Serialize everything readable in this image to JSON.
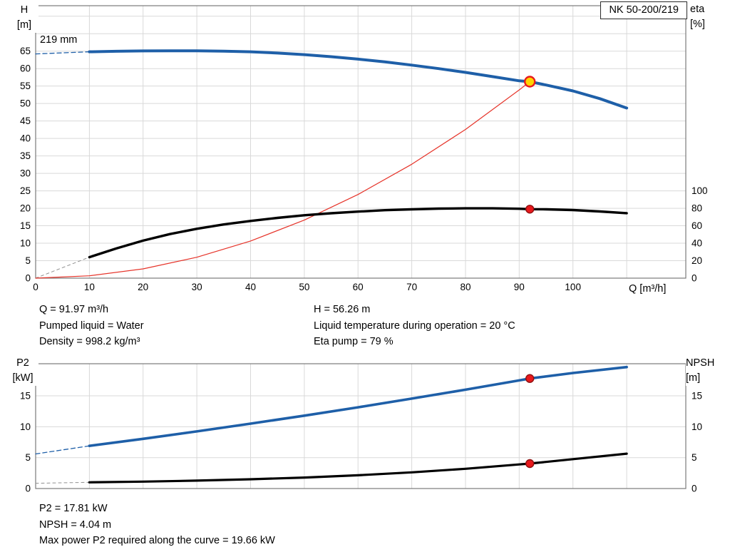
{
  "colors": {
    "curve_blue": "#1e5fa8",
    "curve_black": "#000000",
    "system_red": "#e63329",
    "marker_red": "#e8191d",
    "marker_yellow": "#ffd400",
    "marker_stroke_dark": "#8f1010",
    "grid": "#d9d9d9",
    "frame": "#7a7a7a",
    "dashed_gray": "#909090"
  },
  "axis_titles": {
    "top_left": [
      "H",
      "[m]"
    ],
    "top_right": [
      "eta",
      "[%]"
    ],
    "top_x": "Q [m³/h]",
    "bottom_left": [
      "P2",
      "[kW]"
    ],
    "bottom_right": [
      "NPSH",
      "[m]"
    ]
  },
  "info_top_left": [
    "Q = 91.97 m³/h",
    "Pumped liquid = Water",
    "Density = 998.2 kg/m³"
  ],
  "info_top_right": [
    "H = 56.26 m",
    "Liquid temperature during operation = 20 °C",
    "Eta pump = 79 %"
  ],
  "info_bottom": [
    "P2 = 17.81 kW",
    "NPSH = 4.04 m",
    "Max power P2 required along the curve = 19.66 kW"
  ],
  "chart_data": [
    {
      "type": "line",
      "title": "NK 50-200/219",
      "xlabel": "Q [m³/h]",
      "x_range": [
        0,
        121
      ],
      "x_ticks": [
        0,
        10,
        20,
        30,
        40,
        50,
        60,
        70,
        80,
        90,
        100
      ],
      "x_grid_step": 10,
      "x_grid_max": 110,
      "annotations": [
        {
          "text": "219 mm"
        }
      ],
      "y_left": {
        "label": "H [m]",
        "range": [
          0,
          78
        ],
        "ticks": [
          0,
          5,
          10,
          15,
          20,
          25,
          30,
          35,
          40,
          45,
          50,
          55,
          60,
          65
        ],
        "grid_step": 5,
        "grid_max": 75
      },
      "y_right": {
        "label": "eta [%]",
        "ticks": [
          0,
          20,
          40,
          60,
          80,
          100
        ],
        "left_units_per_unit": 0.25
      },
      "series": [
        {
          "name": "head-dashed",
          "axis": "left",
          "color": "blue",
          "dashed": true,
          "width": 1.3,
          "points": [
            [
              0,
              64.2
            ],
            [
              5,
              64.5
            ],
            [
              10,
              64.8
            ]
          ]
        },
        {
          "name": "eta-dashed",
          "axis": "right",
          "color": "gray",
          "dashed": true,
          "width": 1,
          "points": [
            [
              0,
              0
            ],
            [
              10,
              24
            ]
          ]
        },
        {
          "name": "system-curve",
          "axis": "left",
          "color": "red",
          "dashed": false,
          "width": 1.2,
          "points": [
            [
              0,
              0
            ],
            [
              10,
              0.67
            ],
            [
              20,
              2.66
            ],
            [
              30,
              5.99
            ],
            [
              40,
              10.64
            ],
            [
              50,
              16.63
            ],
            [
              60,
              23.95
            ],
            [
              70,
              32.6
            ],
            [
              80,
              42.58
            ],
            [
              90,
              53.89
            ],
            [
              91.97,
              56.26
            ]
          ]
        },
        {
          "name": "eta",
          "axis": "right",
          "color": "black",
          "dashed": false,
          "width": 3.4,
          "points": [
            [
              10,
              24
            ],
            [
              15,
              34
            ],
            [
              20,
              43
            ],
            [
              25,
              50.5
            ],
            [
              30,
              56.5
            ],
            [
              35,
              61.5
            ],
            [
              40,
              65.5
            ],
            [
              45,
              69
            ],
            [
              50,
              72
            ],
            [
              55,
              74.3
            ],
            [
              60,
              76.2
            ],
            [
              65,
              77.8
            ],
            [
              70,
              78.8
            ],
            [
              75,
              79.6
            ],
            [
              80,
              80
            ],
            [
              85,
              80
            ],
            [
              90,
              79.5
            ],
            [
              91.97,
              79
            ],
            [
              95,
              78.8
            ],
            [
              100,
              78
            ],
            [
              105,
              76.4
            ],
            [
              110,
              74.4
            ]
          ]
        },
        {
          "name": "head",
          "axis": "left",
          "color": "blue",
          "dashed": false,
          "width": 4,
          "points": [
            [
              10,
              64.8
            ],
            [
              15,
              64.95
            ],
            [
              20,
              65.05
            ],
            [
              25,
              65.1
            ],
            [
              30,
              65.1
            ],
            [
              35,
              65.0
            ],
            [
              40,
              64.8
            ],
            [
              45,
              64.45
            ],
            [
              50,
              64.0
            ],
            [
              55,
              63.4
            ],
            [
              60,
              62.7
            ],
            [
              65,
              61.9
            ],
            [
              70,
              61.0
            ],
            [
              75,
              60.0
            ],
            [
              80,
              58.9
            ],
            [
              85,
              57.7
            ],
            [
              90,
              56.5
            ],
            [
              91.97,
              56.26
            ],
            [
              95,
              55.3
            ],
            [
              100,
              53.6
            ],
            [
              105,
              51.4
            ],
            [
              110,
              48.7
            ]
          ]
        }
      ],
      "markers": [
        {
          "name": "duty-point-eta",
          "axis": "right",
          "x": 91.97,
          "y": 79,
          "fill": "red",
          "r": 5.5
        },
        {
          "name": "duty-point-head",
          "axis": "left",
          "x": 91.97,
          "y": 56.26,
          "fill": "yellow",
          "r": 7
        }
      ]
    },
    {
      "type": "line",
      "title": "",
      "xlabel": "",
      "x_range": [
        0,
        121
      ],
      "x_ticks": [],
      "x_grid_step": 10,
      "x_grid_max": 110,
      "annotations": [],
      "y_left": {
        "label": "P2 [kW]",
        "range": [
          0,
          20.2
        ],
        "ticks": [
          0,
          5,
          10,
          15
        ],
        "grid_step": 5,
        "grid_max": 15
      },
      "y_right": {
        "label": "NPSH [m]",
        "ticks": [
          0,
          5,
          10,
          15
        ],
        "left_units_per_unit": 1
      },
      "series": [
        {
          "name": "p2-dashed",
          "axis": "left",
          "color": "blue",
          "dashed": true,
          "width": 1.3,
          "points": [
            [
              0,
              5.6
            ],
            [
              10,
              6.9
            ]
          ]
        },
        {
          "name": "npsh-dashed",
          "axis": "left",
          "color": "gray",
          "dashed": true,
          "width": 1,
          "points": [
            [
              0,
              0.85
            ],
            [
              10,
              1.0
            ]
          ]
        },
        {
          "name": "npsh",
          "axis": "left",
          "color": "black",
          "dashed": false,
          "width": 3.2,
          "points": [
            [
              10,
              1.0
            ],
            [
              20,
              1.12
            ],
            [
              30,
              1.28
            ],
            [
              40,
              1.5
            ],
            [
              50,
              1.78
            ],
            [
              60,
              2.15
            ],
            [
              70,
              2.62
            ],
            [
              80,
              3.2
            ],
            [
              90,
              3.9
            ],
            [
              91.97,
              4.04
            ],
            [
              100,
              4.75
            ],
            [
              110,
              5.65
            ]
          ]
        },
        {
          "name": "p2",
          "axis": "left",
          "color": "blue",
          "dashed": false,
          "width": 3.6,
          "points": [
            [
              10,
              6.9
            ],
            [
              20,
              8.05
            ],
            [
              30,
              9.25
            ],
            [
              40,
              10.5
            ],
            [
              50,
              11.8
            ],
            [
              60,
              13.15
            ],
            [
              70,
              14.55
            ],
            [
              80,
              16.0
            ],
            [
              90,
              17.5
            ],
            [
              91.97,
              17.81
            ],
            [
              100,
              18.7
            ],
            [
              110,
              19.66
            ]
          ]
        }
      ],
      "markers": [
        {
          "name": "duty-point-p2",
          "axis": "left",
          "x": 91.97,
          "y": 17.81,
          "fill": "red",
          "r": 5.5
        },
        {
          "name": "duty-point-npsh",
          "axis": "left",
          "x": 91.97,
          "y": 4.04,
          "fill": "red",
          "r": 5.5
        }
      ]
    }
  ]
}
